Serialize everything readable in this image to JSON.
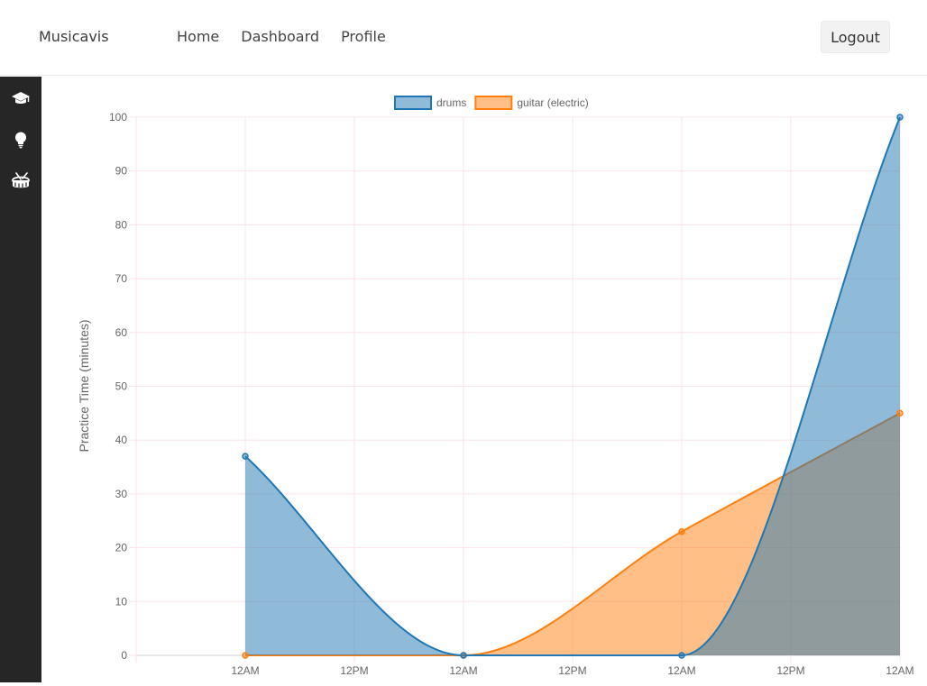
{
  "navbar": {
    "brand": "Musicavis",
    "links": [
      "Home",
      "Dashboard",
      "Profile"
    ],
    "logout_label": "Logout"
  },
  "sidebar": {
    "items": [
      {
        "icon": "graduation-cap-icon"
      },
      {
        "icon": "lightbulb-icon"
      },
      {
        "icon": "drum-icon"
      }
    ]
  },
  "chart_data": {
    "type": "area",
    "ylabel": "Practice Time (minutes)",
    "ylim": [
      0,
      100
    ],
    "yticks": [
      0,
      10,
      20,
      30,
      40,
      50,
      60,
      70,
      80,
      90,
      100
    ],
    "xticks": [
      "12AM",
      "12PM",
      "12AM",
      "12PM",
      "12AM",
      "12PM",
      "12AM"
    ],
    "grid": true,
    "legend_position": "top",
    "series": [
      {
        "name": "drums",
        "color": "#1f77b4",
        "fill": "rgba(31,119,180,0.5)",
        "values": [
          37,
          0,
          0,
          100
        ]
      },
      {
        "name": "guitar (electric)",
        "color": "#ff7f0e",
        "fill": "rgba(255,127,14,0.5)",
        "values": [
          0,
          0,
          23,
          45
        ]
      }
    ]
  }
}
